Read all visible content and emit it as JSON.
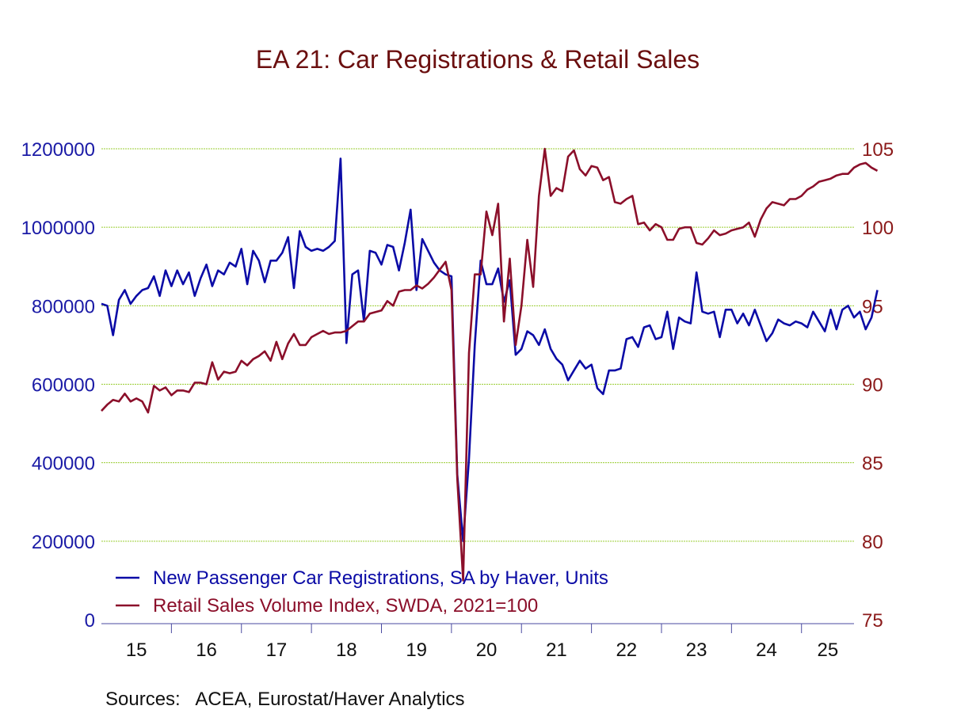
{
  "colors": {
    "title": "#6b0f0f",
    "left_axis": "#1a1aa6",
    "right_axis": "#8b1a1a",
    "series_registrations": "#0b0ba6",
    "series_retail": "#8b0f2a",
    "grid": "#9acd32",
    "axis": "#4a4aa0"
  },
  "source_text": "Sources:   ACEA, Eurostat/Haver Analytics",
  "chart_data": {
    "type": "line",
    "title": "EA 21: Car Registrations & Retail Sales",
    "grid": true,
    "legend_position": "bottom-left",
    "x_unit": "year",
    "x_range": [
      "2015-01",
      "2025-09"
    ],
    "x_tick_labels": [
      "15",
      "16",
      "17",
      "18",
      "19",
      "20",
      "21",
      "22",
      "23",
      "24",
      "25"
    ],
    "y_left": {
      "range": [
        0,
        1200000
      ],
      "ticks": [
        "0",
        "200000",
        "400000",
        "600000",
        "800000",
        "1000000",
        "1200000"
      ]
    },
    "y_right": {
      "range": [
        75,
        105
      ],
      "ticks": [
        "75",
        "80",
        "85",
        "90",
        "95",
        "100",
        "105"
      ]
    },
    "series": [
      {
        "name": "New Passenger Car Registrations, SA by Haver, Units",
        "axis": "left",
        "start": "2015-01",
        "frequency": "monthly",
        "values": [
          805000,
          800000,
          725000,
          815000,
          840000,
          805000,
          825000,
          840000,
          845000,
          875000,
          825000,
          890000,
          850000,
          890000,
          855000,
          885000,
          825000,
          870000,
          905000,
          850000,
          890000,
          880000,
          910000,
          900000,
          945000,
          855000,
          940000,
          915000,
          860000,
          915000,
          915000,
          935000,
          975000,
          845000,
          990000,
          950000,
          940000,
          945000,
          940000,
          950000,
          965000,
          1175000,
          705000,
          880000,
          890000,
          760000,
          940000,
          935000,
          905000,
          955000,
          950000,
          890000,
          960000,
          1045000,
          840000,
          970000,
          940000,
          910000,
          890000,
          880000,
          875000,
          370000,
          200000,
          410000,
          700000,
          915000,
          855000,
          855000,
          895000,
          810000,
          865000,
          675000,
          690000,
          735000,
          725000,
          700000,
          740000,
          690000,
          665000,
          650000,
          610000,
          635000,
          660000,
          640000,
          650000,
          590000,
          575000,
          635000,
          635000,
          640000,
          715000,
          720000,
          695000,
          745000,
          750000,
          715000,
          720000,
          785000,
          690000,
          770000,
          760000,
          755000,
          885000,
          785000,
          780000,
          785000,
          720000,
          790000,
          790000,
          755000,
          780000,
          750000,
          790000,
          750000,
          710000,
          730000,
          765000,
          755000,
          750000,
          760000,
          755000,
          745000,
          785000,
          760000,
          735000,
          790000,
          740000,
          790000,
          800000,
          770000,
          785000,
          740000,
          770000,
          840000
        ]
      },
      {
        "name": "Retail Sales Volume Index, SWDA, 2021=100",
        "axis": "right",
        "start": "2015-01",
        "frequency": "monthly",
        "values": [
          88.3,
          88.7,
          89.0,
          88.9,
          89.4,
          88.9,
          89.1,
          88.9,
          88.2,
          89.9,
          89.6,
          89.8,
          89.3,
          89.6,
          89.6,
          89.5,
          90.1,
          90.1,
          90.0,
          91.4,
          90.3,
          90.8,
          90.7,
          90.8,
          91.5,
          91.2,
          91.6,
          91.8,
          92.1,
          91.5,
          92.7,
          91.6,
          92.6,
          93.2,
          92.5,
          92.5,
          93.0,
          93.2,
          93.4,
          93.2,
          93.3,
          93.3,
          93.4,
          93.7,
          94.0,
          94.0,
          94.5,
          94.6,
          94.7,
          95.3,
          95.0,
          95.9,
          96.0,
          96.0,
          96.3,
          96.1,
          96.4,
          96.8,
          97.3,
          97.8,
          96.0,
          84.0,
          77.5,
          92.0,
          97.0,
          97.0,
          101.0,
          99.5,
          101.5,
          94.0,
          98.0,
          92.5,
          95.0,
          99.2,
          96.2,
          102.0,
          105.0,
          102.0,
          102.5,
          102.3,
          104.5,
          104.9,
          103.7,
          103.3,
          103.9,
          103.8,
          103.0,
          103.2,
          101.6,
          101.5,
          101.8,
          102.0,
          100.2,
          100.3,
          99.8,
          100.2,
          100.0,
          99.2,
          99.2,
          99.9,
          100.0,
          100.0,
          99.0,
          98.9,
          99.3,
          99.8,
          99.5,
          99.6,
          99.8,
          99.9,
          100.0,
          100.3,
          99.4,
          100.5,
          101.2,
          101.6,
          101.5,
          101.4,
          101.8,
          101.8,
          102.0,
          102.4,
          102.6,
          102.9,
          103.0,
          103.1,
          103.3,
          103.4,
          103.4,
          103.8,
          104.0,
          104.1,
          103.8,
          103.6
        ]
      }
    ]
  }
}
